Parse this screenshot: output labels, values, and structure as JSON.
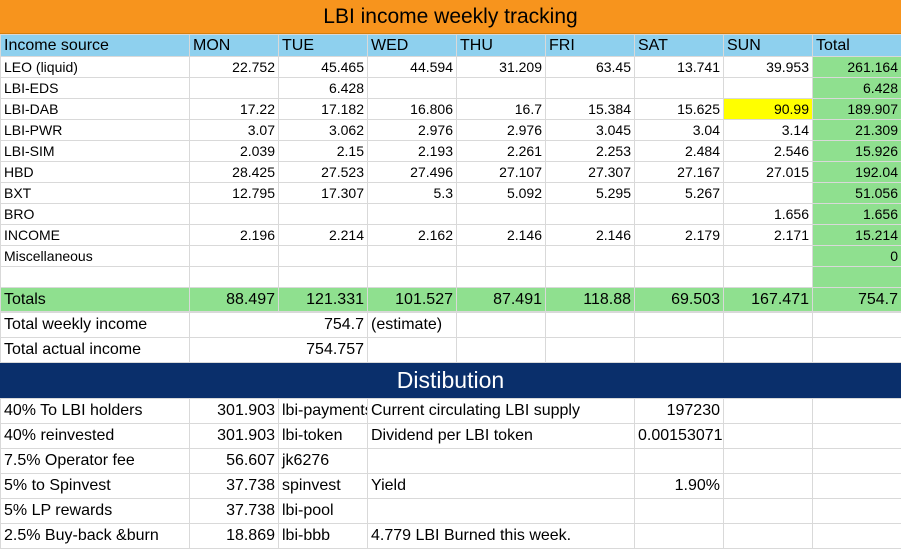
{
  "title": "LBI income weekly tracking",
  "headers": [
    "Income source",
    "MON",
    "TUE",
    "WED",
    "THU",
    "FRI",
    "SAT",
    "SUN",
    "Total"
  ],
  "rows": [
    {
      "label": "LEO (liquid)",
      "cells": [
        "22.752",
        "45.465",
        "44.594",
        "31.209",
        "63.45",
        "13.741",
        "39.953"
      ],
      "total": "261.164"
    },
    {
      "label": "LBI-EDS",
      "cells": [
        "",
        "6.428",
        "",
        "",
        "",
        "",
        ""
      ],
      "total": "6.428"
    },
    {
      "label": "LBI-DAB",
      "cells": [
        "17.22",
        "17.182",
        "16.806",
        "16.7",
        "15.384",
        "15.625",
        "90.99"
      ],
      "total": "189.907"
    },
    {
      "label": "LBI-PWR",
      "cells": [
        "3.07",
        "3.062",
        "2.976",
        "2.976",
        "3.045",
        "3.04",
        "3.14"
      ],
      "total": "21.309"
    },
    {
      "label": "LBI-SIM",
      "cells": [
        "2.039",
        "2.15",
        "2.193",
        "2.261",
        "2.253",
        "2.484",
        "2.546"
      ],
      "total": "15.926"
    },
    {
      "label": "HBD",
      "cells": [
        "28.425",
        "27.523",
        "27.496",
        "27.107",
        "27.307",
        "27.167",
        "27.015"
      ],
      "total": "192.04"
    },
    {
      "label": "BXT",
      "cells": [
        "12.795",
        "17.307",
        "5.3",
        "5.092",
        "5.295",
        "5.267",
        ""
      ],
      "total": "51.056"
    },
    {
      "label": "BRO",
      "cells": [
        "",
        "",
        "",
        "",
        "",
        "",
        "1.656"
      ],
      "total": "1.656"
    },
    {
      "label": "INCOME",
      "cells": [
        "2.196",
        "2.214",
        "2.162",
        "2.146",
        "2.146",
        "2.179",
        "2.171"
      ],
      "total": "15.214"
    },
    {
      "label": "Miscellaneous",
      "cells": [
        "",
        "",
        "",
        "",
        "",
        "",
        ""
      ],
      "total": "0"
    }
  ],
  "highlight_color": "#ffff00",
  "totals": {
    "label": "Totals",
    "cells": [
      "88.497",
      "121.331",
      "101.527",
      "87.491",
      "118.88",
      "69.503",
      "167.471"
    ],
    "total": "754.7"
  },
  "summary": {
    "weekly_label": "Total weekly income",
    "weekly_value": "754.7",
    "weekly_note": "(estimate)",
    "actual_label": "Total actual income",
    "actual_value": "754.757"
  },
  "distribution": {
    "title": "Distibution",
    "rows": [
      {
        "label": "40% To LBI holders",
        "value": "301.903",
        "account": "lbi-payments",
        "info_label": "Current circulating LBI supply",
        "info_value": "197230"
      },
      {
        "label": "40% reinvested",
        "value": "301.903",
        "account": "lbi-token",
        "info_label": "Dividend per LBI token",
        "info_value": "0.001530715"
      },
      {
        "label": "7.5% Operator fee",
        "value": "56.607",
        "account": "jk6276",
        "info_label": "",
        "info_value": ""
      },
      {
        "label": "5% to Spinvest",
        "value": "37.738",
        "account": "spinvest",
        "info_label": "Yield",
        "info_value": "1.90%"
      },
      {
        "label": "5% LP rewards",
        "value": "37.738",
        "account": "lbi-pool",
        "info_label": "",
        "info_value": ""
      },
      {
        "label": "2.5% Buy-back &burn",
        "value": "18.869",
        "account": "lbi-bbb",
        "info_label": "4.779 LBI Burned this week.",
        "info_value": ""
      }
    ]
  },
  "colors": {
    "title_bg": "#f7941d",
    "header_bg": "#8ed0ee",
    "total_bg": "#8fe08f",
    "dist_title_bg": "#0a2f6b"
  }
}
